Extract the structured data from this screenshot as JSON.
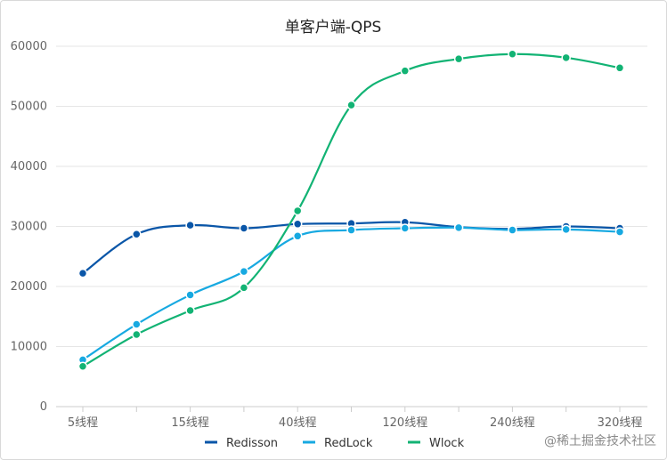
{
  "chart_data": {
    "type": "line",
    "title": "单客户端-QPS",
    "xlabel": "",
    "ylabel": "",
    "x_tick_labels": [
      "5线程",
      "",
      "15线程",
      "",
      "40线程",
      "",
      "120线程",
      "",
      "240线程",
      "",
      "320线程"
    ],
    "ylim": [
      0,
      60000
    ],
    "yticks": [
      0,
      10000,
      20000,
      30000,
      40000,
      50000,
      60000
    ],
    "grid": true,
    "legend_position": "bottom",
    "series": [
      {
        "name": "Redisson",
        "color": "#0a56a8",
        "values": [
          22200,
          28700,
          30200,
          29700,
          30400,
          30500,
          30700,
          29900,
          29600,
          30000,
          29700
        ]
      },
      {
        "name": "RedLock",
        "color": "#17a9e1",
        "values": [
          7800,
          13700,
          18600,
          22500,
          28400,
          29400,
          29700,
          29800,
          29400,
          29500,
          29100
        ]
      },
      {
        "name": "Wlock",
        "color": "#12b374",
        "values": [
          6700,
          12000,
          16000,
          19800,
          32600,
          50200,
          55900,
          57900,
          58700,
          58100,
          56400
        ]
      }
    ]
  },
  "watermark": "@稀土掘金技术社区"
}
